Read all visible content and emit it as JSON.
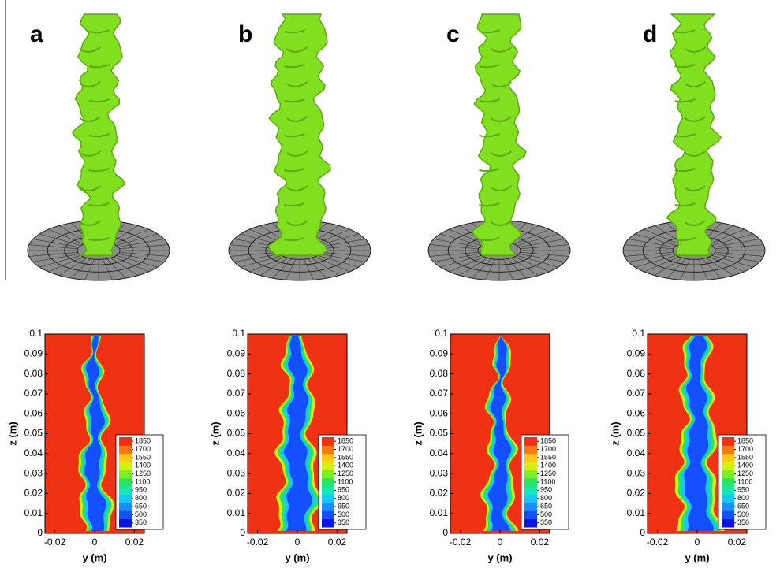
{
  "panels": [
    {
      "label": "a",
      "plot": {
        "xlabel": "y (m)",
        "ylabel": "z (m)"
      }
    },
    {
      "label": "b",
      "plot": {
        "xlabel": "y (m)",
        "ylabel": "z (m)"
      }
    },
    {
      "label": "c",
      "plot": {
        "xlabel": "y (m)",
        "ylabel": "z (m)"
      }
    },
    {
      "label": "d",
      "plot": {
        "xlabel": "y (m)",
        "ylabel": "z (m)"
      }
    }
  ],
  "axes": {
    "xlim": [
      -0.025,
      0.025
    ],
    "ylim": [
      0,
      0.1
    ],
    "xticks": [
      -0.02,
      0,
      0.02
    ],
    "yticks": [
      0,
      0.01,
      0.02,
      0.03,
      0.04,
      0.05,
      0.06,
      0.07,
      0.08,
      0.09,
      0.1
    ]
  },
  "colorbar": {
    "ticks": [
      350,
      500,
      650,
      800,
      950,
      1100,
      1250,
      1400,
      1550,
      1700,
      1850
    ],
    "colors": [
      "#0a14e6",
      "#1450ff",
      "#1e8cff",
      "#14c8f0",
      "#14e6b4",
      "#28e664",
      "#78f028",
      "#d2f014",
      "#ffc814",
      "#ff7814",
      "#f03214"
    ]
  }
}
